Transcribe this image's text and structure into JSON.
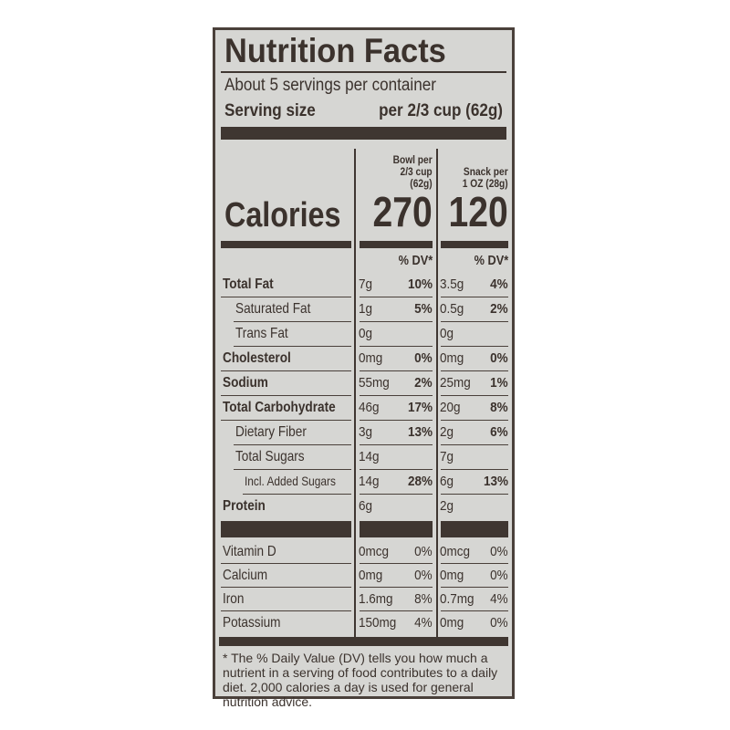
{
  "title": "Nutrition Facts",
  "servings_per_container": "About 5 servings per container",
  "serving_size_label": "Serving size",
  "serving_size_value": "per 2/3 cup (62g)",
  "calories_label": "Calories",
  "columns": [
    {
      "header": [
        "Bowl per",
        "2/3 cup",
        "(62g)"
      ],
      "calories": "270",
      "dv_header": "% DV*"
    },
    {
      "header": [
        "Snack per",
        "1 OZ (28g)"
      ],
      "calories": "120",
      "dv_header": "% DV*"
    }
  ],
  "nutrients": [
    {
      "name": "Total Fat",
      "bold": true,
      "indent": 0,
      "bowl_amt": "7g",
      "bowl_dv": "10%",
      "snack_amt": "3.5g",
      "snack_dv": "4%"
    },
    {
      "name": "Saturated Fat",
      "bold": false,
      "indent": 1,
      "bowl_amt": "1g",
      "bowl_dv": "5%",
      "snack_amt": "0.5g",
      "snack_dv": "2%"
    },
    {
      "name": "Trans Fat",
      "bold": false,
      "indent": 1,
      "bowl_amt": "0g",
      "bowl_dv": "",
      "snack_amt": "0g",
      "snack_dv": ""
    },
    {
      "name": "Cholesterol",
      "bold": true,
      "indent": 0,
      "bowl_amt": "0mg",
      "bowl_dv": "0%",
      "snack_amt": "0mg",
      "snack_dv": "0%"
    },
    {
      "name": "Sodium",
      "bold": true,
      "indent": 0,
      "bowl_amt": "55mg",
      "bowl_dv": "2%",
      "snack_amt": "25mg",
      "snack_dv": "1%"
    },
    {
      "name": "Total Carbohydrate",
      "bold": true,
      "indent": 0,
      "bowl_amt": "46g",
      "bowl_dv": "17%",
      "snack_amt": "20g",
      "snack_dv": "8%"
    },
    {
      "name": "Dietary Fiber",
      "bold": false,
      "indent": 1,
      "bowl_amt": "3g",
      "bowl_dv": "13%",
      "snack_amt": "2g",
      "snack_dv": "6%"
    },
    {
      "name": "Total Sugars",
      "bold": false,
      "indent": 1,
      "bowl_amt": "14g",
      "bowl_dv": "",
      "snack_amt": "7g",
      "snack_dv": ""
    },
    {
      "name": "Incl. Added Sugars",
      "bold": false,
      "indent": 2,
      "bowl_amt": "14g",
      "bowl_dv": "28%",
      "snack_amt": "6g",
      "snack_dv": "13%"
    },
    {
      "name": "Protein",
      "bold": true,
      "indent": 0,
      "bowl_amt": "6g",
      "bowl_dv": "",
      "snack_amt": "2g",
      "snack_dv": ""
    }
  ],
  "vitamins": [
    {
      "name": "Vitamin D",
      "bowl_amt": "0mcg",
      "bowl_dv": "0%",
      "snack_amt": "0mcg",
      "snack_dv": "0%"
    },
    {
      "name": "Calcium",
      "bowl_amt": "0mg",
      "bowl_dv": "0%",
      "snack_amt": "0mg",
      "snack_dv": "0%"
    },
    {
      "name": "Iron",
      "bowl_amt": "1.6mg",
      "bowl_dv": "8%",
      "snack_amt": "0.7mg",
      "snack_dv": "4%"
    },
    {
      "name": "Potassium",
      "bowl_amt": "150mg",
      "bowl_dv": "4%",
      "snack_amt": "0mg",
      "snack_dv": "0%"
    }
  ],
  "footnote": "* The % Daily Value (DV) tells you how much a nutrient in a serving of food contributes to a daily diet. 2,000 calories a day is used for general nutrition advice."
}
